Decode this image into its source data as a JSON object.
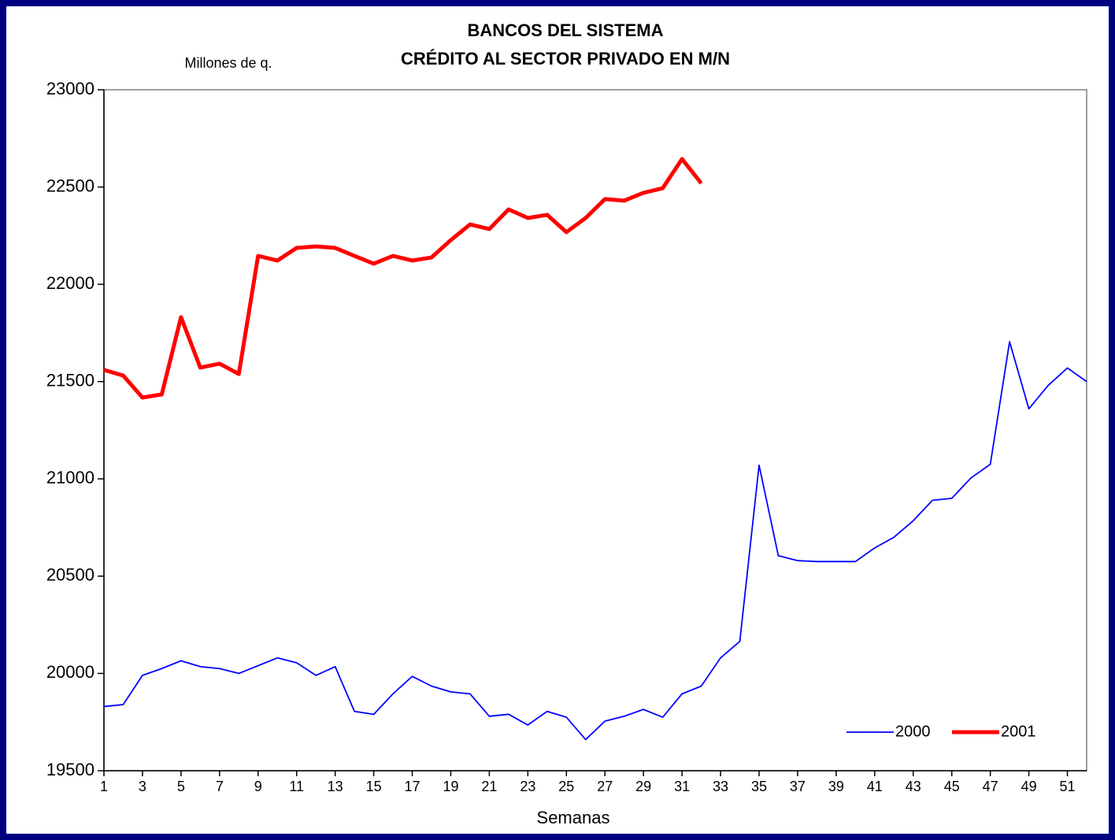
{
  "chart_data": {
    "type": "line",
    "title": "BANCOS DEL SISTEMA",
    "subtitle": "CRÉDITO AL SECTOR PRIVADO EN M/N",
    "y_label": "Millones de q.",
    "x_label": "Semanas",
    "x": [
      1,
      2,
      3,
      4,
      5,
      6,
      7,
      8,
      9,
      10,
      11,
      12,
      13,
      14,
      15,
      16,
      17,
      18,
      19,
      20,
      21,
      22,
      23,
      24,
      25,
      26,
      27,
      28,
      29,
      30,
      31,
      32,
      33,
      34,
      35,
      36,
      37,
      38,
      39,
      40,
      41,
      42,
      43,
      44,
      45,
      46,
      47,
      48,
      49,
      50,
      51,
      52
    ],
    "xlim": [
      1,
      52
    ],
    "xticks": [
      1,
      3,
      5,
      7,
      9,
      11,
      13,
      15,
      17,
      19,
      21,
      23,
      25,
      27,
      29,
      31,
      33,
      35,
      37,
      39,
      41,
      43,
      45,
      47,
      49,
      51
    ],
    "ylim": [
      19500,
      23000
    ],
    "yticks": [
      19500,
      20000,
      20500,
      21000,
      21500,
      22000,
      22500,
      23000
    ],
    "legend": "lower right",
    "series": [
      {
        "name": "2000",
        "color": "#0000ff",
        "values": [
          19830,
          19840,
          19990,
          20025,
          20065,
          20035,
          20025,
          20000,
          20040,
          20080,
          20055,
          19990,
          20035,
          19805,
          19790,
          19895,
          19985,
          19935,
          19905,
          19895,
          19780,
          19790,
          19735,
          19805,
          19775,
          19660,
          19755,
          19780,
          19815,
          19775,
          19895,
          19935,
          20080,
          20165,
          21070,
          20605,
          20580,
          20575,
          20575,
          20575,
          20645,
          20700,
          20785,
          20890,
          20900,
          21005,
          21075,
          21705,
          21360,
          21480,
          21570,
          21500
        ]
      },
      {
        "name": "2001",
        "color": "#ff0000",
        "values": [
          21560,
          21531,
          21418,
          21434,
          21831,
          21572,
          21592,
          21539,
          22146,
          22122,
          22187,
          22195,
          22187,
          22146,
          22106,
          22146,
          22122,
          22138,
          22227,
          22308,
          22284,
          22385,
          22341,
          22357,
          22268,
          22341,
          22438,
          22430,
          22470,
          22494,
          22644,
          22519,
          null,
          null,
          null,
          null,
          null,
          null,
          null,
          null,
          null,
          null,
          null,
          null,
          null,
          null,
          null,
          null,
          null,
          null,
          null,
          null
        ]
      }
    ]
  }
}
